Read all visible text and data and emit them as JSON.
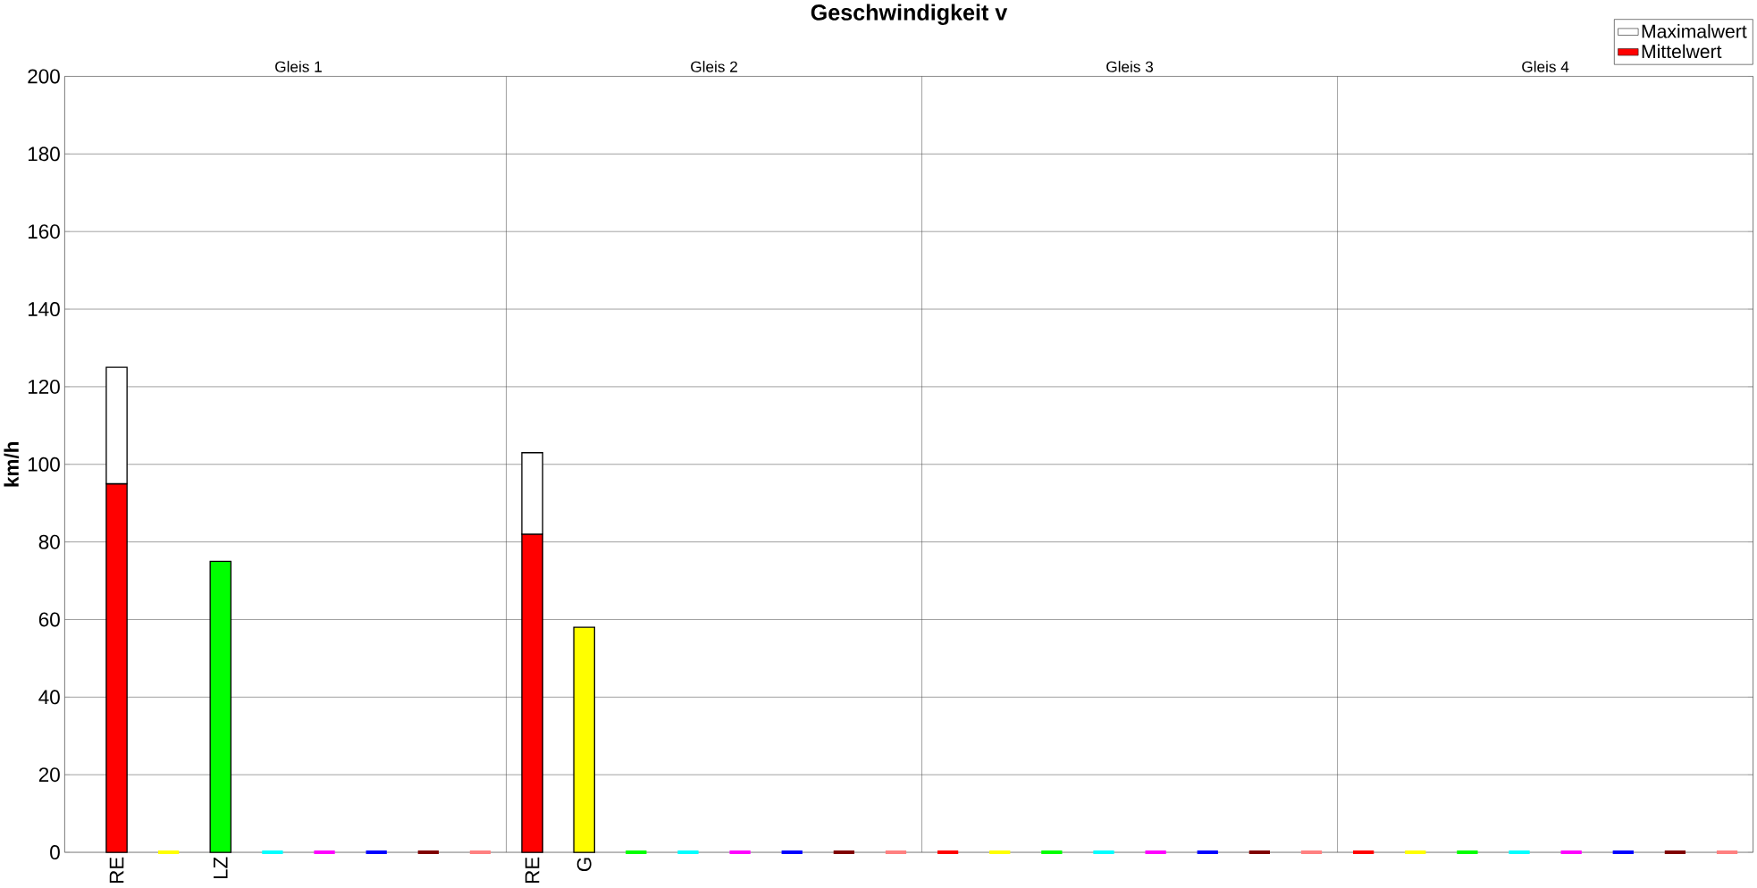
{
  "chart_data": {
    "type": "bar",
    "stacked": true,
    "title": "Geschwindigkeit v",
    "ylabel": "km/h",
    "categories": [
      "RE",
      null,
      "LZ",
      null,
      null,
      null,
      null,
      null,
      "RE",
      "G",
      null,
      null,
      null,
      null,
      null,
      null,
      null,
      null,
      null,
      null,
      null,
      null,
      null,
      null,
      null,
      null,
      null,
      null,
      null,
      null,
      null,
      null
    ],
    "series": [
      {
        "name": "Mittelwert",
        "colors": [
          "#ff0000",
          "#ffff00",
          "#00ff00",
          "#00ffff",
          "#ff00ff",
          "#0000ff",
          "#800000",
          "#ff8080",
          "#ff0000",
          "#ffff00",
          "#00ff00",
          "#00ffff",
          "#ff00ff",
          "#0000ff",
          "#800000",
          "#ff8080",
          "#ff0000",
          "#ffff00",
          "#00ff00",
          "#00ffff",
          "#ff00ff",
          "#0000ff",
          "#800000",
          "#ff8080",
          "#ff0000",
          "#ffff00",
          "#00ff00",
          "#00ffff",
          "#ff00ff",
          "#0000ff",
          "#800000",
          "#ff8080"
        ],
        "values": [
          95,
          0,
          75,
          0,
          0,
          0,
          0,
          0,
          82,
          58,
          0,
          0,
          0,
          0,
          0,
          0,
          0,
          0,
          0,
          0,
          0,
          0,
          0,
          0,
          0,
          0,
          0,
          0,
          0,
          0,
          0,
          0
        ]
      },
      {
        "name": "Maximalwert",
        "color": "#ffffff",
        "values": [
          30,
          null,
          null,
          null,
          null,
          null,
          null,
          null,
          21,
          null,
          null,
          null,
          null,
          null,
          null,
          null,
          null,
          null,
          null,
          null,
          null,
          null,
          null,
          null,
          null,
          null,
          null,
          null,
          null,
          null,
          null,
          null
        ]
      }
    ],
    "annotations": [
      "Gleis 1",
      "Gleis 2",
      "Gleis 3",
      "Gleis 4"
    ],
    "ylim": [
      0,
      200
    ],
    "yticks": [
      0,
      20,
      40,
      60,
      80,
      100,
      120,
      140,
      160,
      180,
      200
    ],
    "grid": "y",
    "legend": "top right"
  }
}
